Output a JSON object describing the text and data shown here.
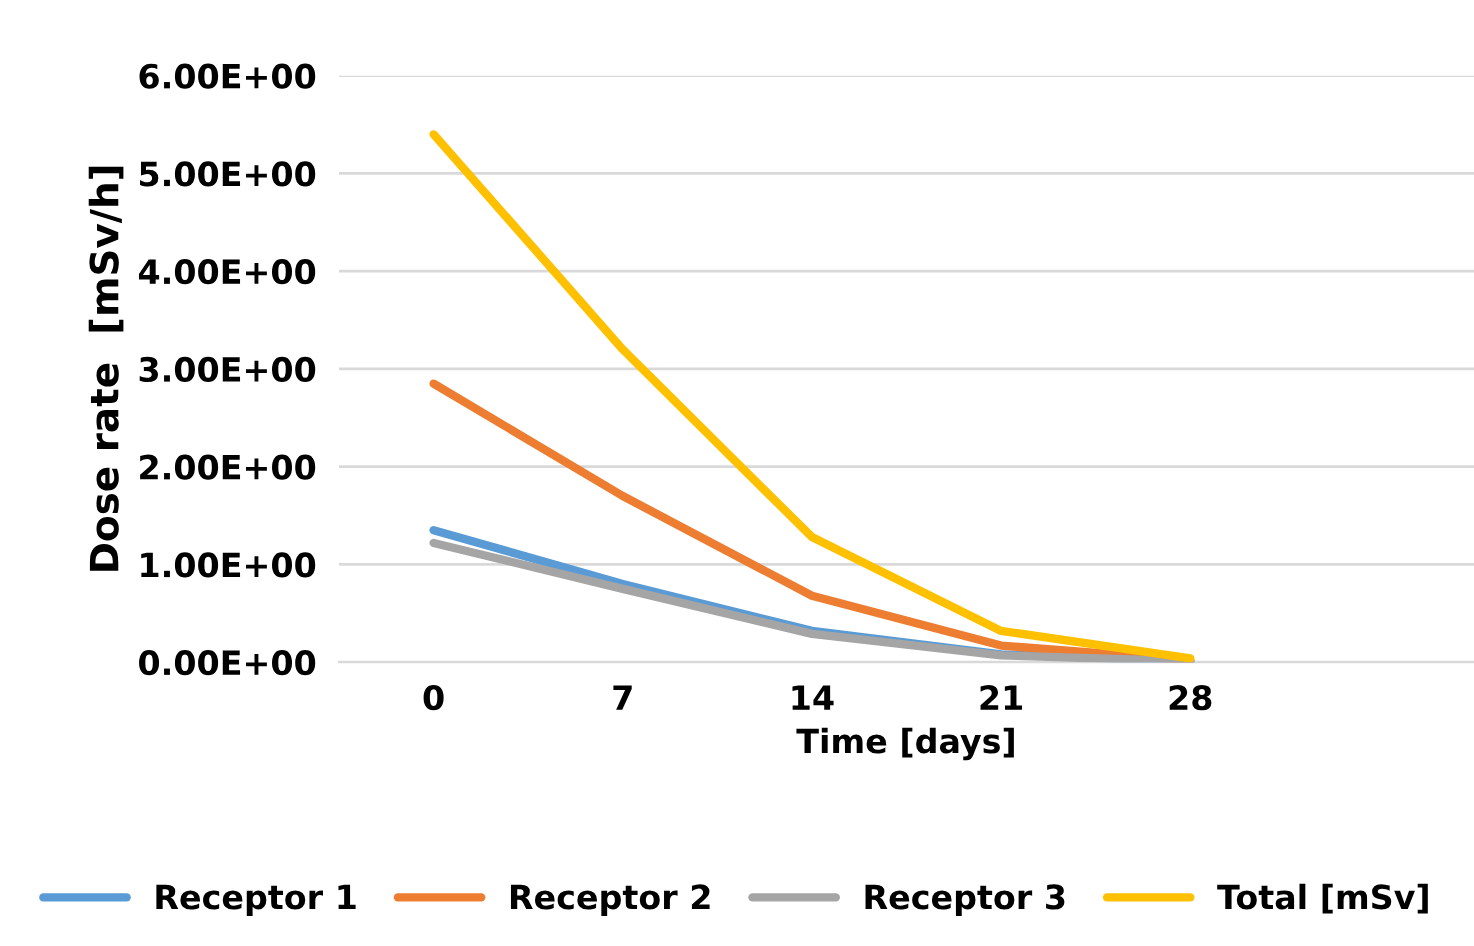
{
  "chart_data": {
    "type": "line",
    "xlabel": "Time [days]",
    "ylabel": "Dose rate  [mSv/h]",
    "categories": [
      "0",
      "7",
      "14",
      "21",
      "28",
      null
    ],
    "ylim": [
      0,
      6
    ],
    "yticks": [
      {
        "value": 0,
        "label": "0.00E+00"
      },
      {
        "value": 1,
        "label": "1.00E+00"
      },
      {
        "value": 2,
        "label": "2.00E+00"
      },
      {
        "value": 3,
        "label": "3.00E+00"
      },
      {
        "value": 4,
        "label": "4.00E+00"
      },
      {
        "value": 5,
        "label": "5.00E+00"
      },
      {
        "value": 6,
        "label": "6.00E+00"
      }
    ],
    "grid": "y",
    "legend": "bottom",
    "marker": "none",
    "line_style": "solid",
    "series": [
      {
        "name": "Receptor 1",
        "color": "#5b9bd5",
        "values": [
          1.35,
          0.8,
          0.32,
          0.08,
          0.01,
          null
        ]
      },
      {
        "name": "Receptor 2",
        "color": "#ed7d31",
        "values": [
          2.85,
          1.7,
          0.68,
          0.17,
          0.02,
          null
        ]
      },
      {
        "name": "Receptor 3",
        "color": "#a5a5a5",
        "values": [
          1.22,
          0.75,
          0.29,
          0.07,
          0.01,
          null
        ]
      },
      {
        "name": "Total [mSv]",
        "color": "#ffc000",
        "values": [
          5.4,
          3.2,
          1.28,
          0.32,
          0.04,
          null
        ]
      }
    ]
  }
}
